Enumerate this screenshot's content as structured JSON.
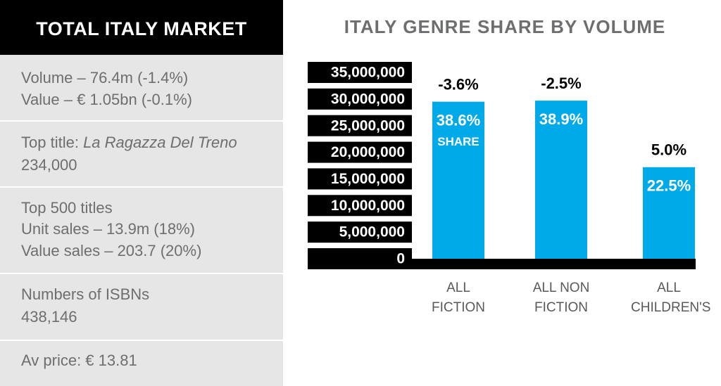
{
  "panel": {
    "title": "TOTAL ITALY MARKET",
    "volume": "Volume – 76.4m (-1.4%)",
    "value": "Value – € 1.05bn (-0.1%)",
    "top_title_label": "Top title:",
    "top_title": "La Ragazza Del Treno",
    "top_title_sales": "234,000",
    "top500": "Top 500 titles",
    "unit_sales": "Unit sales – 13.9m (18%)",
    "value_sales": "Value sales – 203.7 (20%)",
    "isbn_label": "Numbers of ISBNs",
    "isbn_count": "438,146",
    "av_price": "Av price: € 13.81"
  },
  "chart_data": {
    "type": "bar",
    "title": "ITALY GENRE SHARE BY VOLUME",
    "categories": [
      "ALL FICTION",
      "ALL NON FICTION",
      "ALL CHILDREN'S"
    ],
    "values": [
      29500000,
      29700000,
      17200000
    ],
    "color": "#00a9e8",
    "share_labels": [
      "38.6%",
      "38.9%",
      "22.5%"
    ],
    "share_note": "SHARE",
    "change_labels": [
      "-3.6%",
      "-2.5%",
      "5.0%"
    ],
    "ylim": [
      0,
      35000000
    ],
    "yticks": [
      {
        "value": 35000000,
        "label": "35,000,000"
      },
      {
        "value": 30000000,
        "label": "30,000,000"
      },
      {
        "value": 25000000,
        "label": "25,000,000"
      },
      {
        "value": 20000000,
        "label": "20,000,000"
      },
      {
        "value": 15000000,
        "label": "15,000,000"
      },
      {
        "value": 10000000,
        "label": "10,000,000"
      },
      {
        "value": 5000000,
        "label": "5,000,000"
      },
      0
    ]
  }
}
